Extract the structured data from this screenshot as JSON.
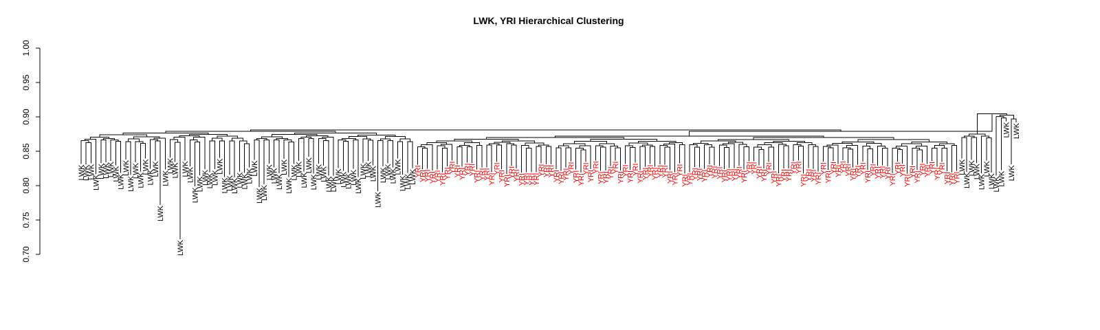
{
  "chart_data": {
    "type": "dendrogram",
    "title": "LWK, YRI Hierarchical Clustering",
    "xlabel": "",
    "ylabel": "",
    "ylim": [
      0.7,
      1.0
    ],
    "yticks": [
      "0.70",
      "0.75",
      "0.80",
      "0.85",
      "0.90",
      "0.95",
      "1.00"
    ],
    "grid": false,
    "legend": "none",
    "colors": {
      "LWK": "#000000",
      "YRI": "#ff0000",
      "branches": "#000000"
    },
    "leaf_groups": [
      {
        "label": "LWK",
        "count": 68,
        "height_range": [
          0.7,
          0.86
        ]
      },
      {
        "label": "YRI",
        "count": 110,
        "height_range": [
          0.82,
          0.84
        ]
      },
      {
        "label": "LWK",
        "count": 12,
        "height_range": [
          0.8,
          0.85
        ]
      }
    ],
    "merge_heights": {
      "root": 0.881,
      "lwk_cluster_top": 0.879,
      "yri_cluster_top": 0.872,
      "tail_lwk_cluster_top": 0.877
    }
  }
}
